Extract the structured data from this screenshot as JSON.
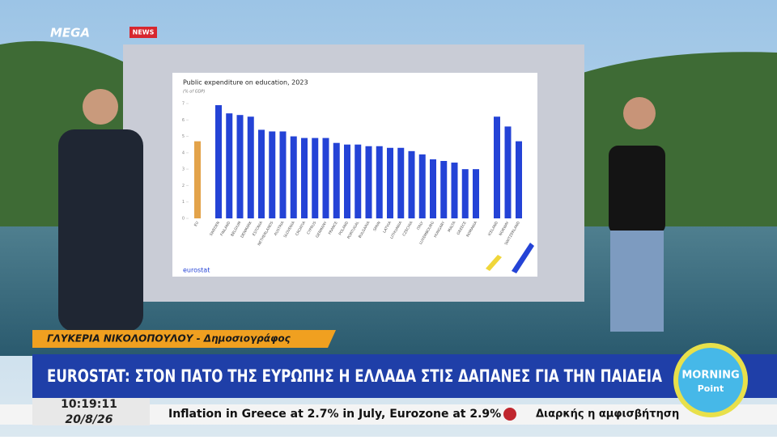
{
  "screen": {
    "channel_logo": "MEGA",
    "channel_logo_sub": "NEWS",
    "speaker": "ΓΛΥΚΕΡΙΑ ΝΙΚΟΛΟΠΟΥΛΟΥ - Δημοσιογράφος",
    "headline": "EUROSTAT: ΣΤΟΝ ΠΑΤΟ ΤΗΣ ΕΥΡΩΠΗΣ Η ΕΛΛΑΔΑ ΣΤΙΣ ΔΑΠΑΝΕΣ ΓΙΑ ΤΗΝ ΠΑΙΔΕΙΑ",
    "time": "10:19:11",
    "date": "20/8/26",
    "ticker": [
      "Inflation in Greece at 2.7% in July, Eurozone at 2.9%",
      "Διαρκής η αμφισβήτηση"
    ],
    "show_logo": [
      "MORNING",
      "Point"
    ]
  },
  "chart_data": {
    "type": "bar",
    "title": "Public expenditure on education, 2023",
    "subtitle": "(% of GDP)",
    "source": "eurostat",
    "categories": [
      "EU",
      "SWEDEN",
      "FINLAND",
      "BELGIUM",
      "DENMARK",
      "ESTONIA",
      "NETHERLANDS",
      "AUSTRIA",
      "SLOVENIA",
      "CROATIA",
      "CYPRUS",
      "GERMANY",
      "FRANCE",
      "POLAND",
      "PORTUGAL",
      "BULGARIA",
      "SPAIN",
      "LATVIA",
      "LITHUANIA",
      "CZECHIA",
      "ITALY",
      "LUXEMBOURG",
      "HUNGARY",
      "MALTA",
      "GREECE",
      "ROMANIA",
      "ICELAND",
      "NORWAY",
      "SWITZERLAND"
    ],
    "values": [
      4.7,
      6.9,
      6.4,
      6.3,
      6.2,
      5.4,
      5.3,
      5.3,
      5.0,
      4.9,
      4.9,
      4.9,
      4.6,
      4.5,
      4.5,
      4.4,
      4.4,
      4.3,
      4.3,
      4.1,
      3.9,
      3.6,
      3.5,
      3.4,
      3.0,
      3.0,
      6.2,
      5.6,
      4.7
    ],
    "color": "#2443d6",
    "eu_color": "#e3a34a",
    "ylim": [
      0,
      7
    ],
    "yticks": [
      0,
      1,
      2,
      3,
      4,
      5,
      6,
      7
    ]
  }
}
